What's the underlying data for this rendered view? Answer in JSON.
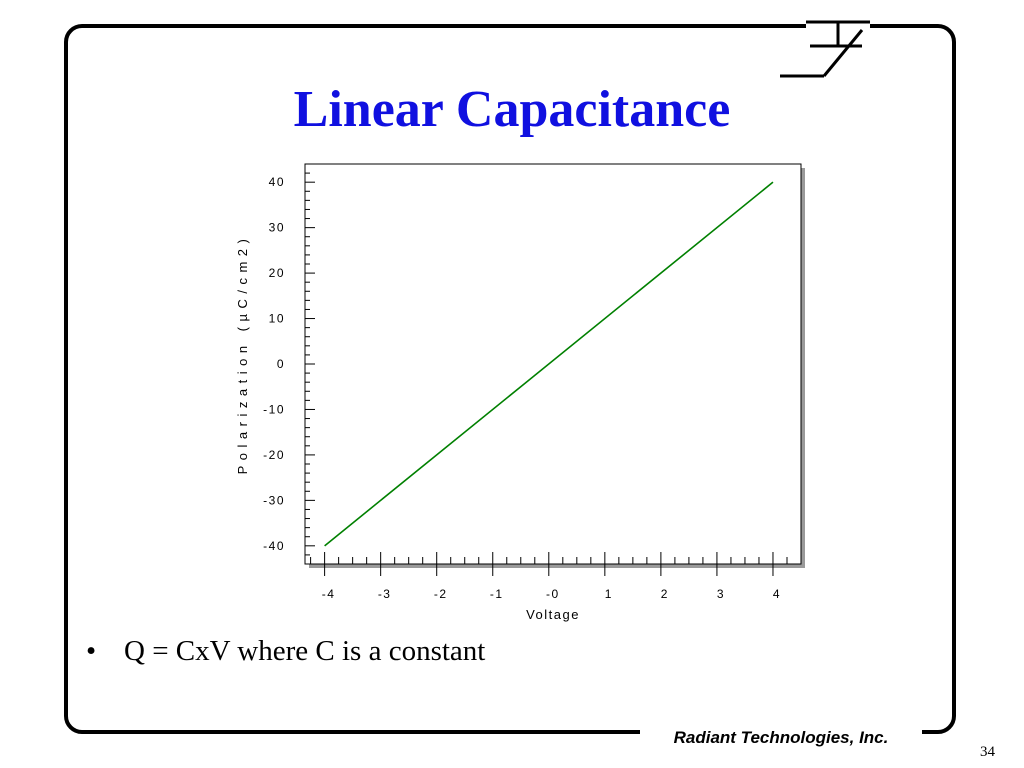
{
  "slide": {
    "title": "Linear Capacitance",
    "bullet": "Q = CxV where C is a constant",
    "company": "Radiant Technologies, Inc.",
    "page_number": "34"
  },
  "colors": {
    "title": "#1010e0",
    "line": "#008000"
  },
  "icons": {
    "logo": "ferroelectric-capacitor-symbol-icon"
  },
  "chart_data": {
    "type": "line",
    "title": "",
    "xlabel": "Voltage",
    "ylabel": "Polarization (µC/cm2)",
    "xlim": [
      -4.35,
      4.5
    ],
    "ylim": [
      -44,
      44
    ],
    "x_ticks": [
      -4,
      -3,
      -2,
      -1,
      0,
      1,
      2,
      3,
      4
    ],
    "x_tick_labels": [
      "-4",
      "-3",
      "-2",
      "-1",
      "-0",
      "1",
      "2",
      "3",
      "4"
    ],
    "y_ticks": [
      -40,
      -30,
      -20,
      -10,
      0,
      10,
      20,
      30,
      40
    ],
    "y_tick_labels": [
      "-40",
      "-30",
      "-20",
      "-10",
      "0",
      "10",
      "20",
      "30",
      "40"
    ],
    "grid": false,
    "series": [
      {
        "x": [
          -4,
          4
        ],
        "y": [
          -40,
          40
        ]
      }
    ]
  }
}
